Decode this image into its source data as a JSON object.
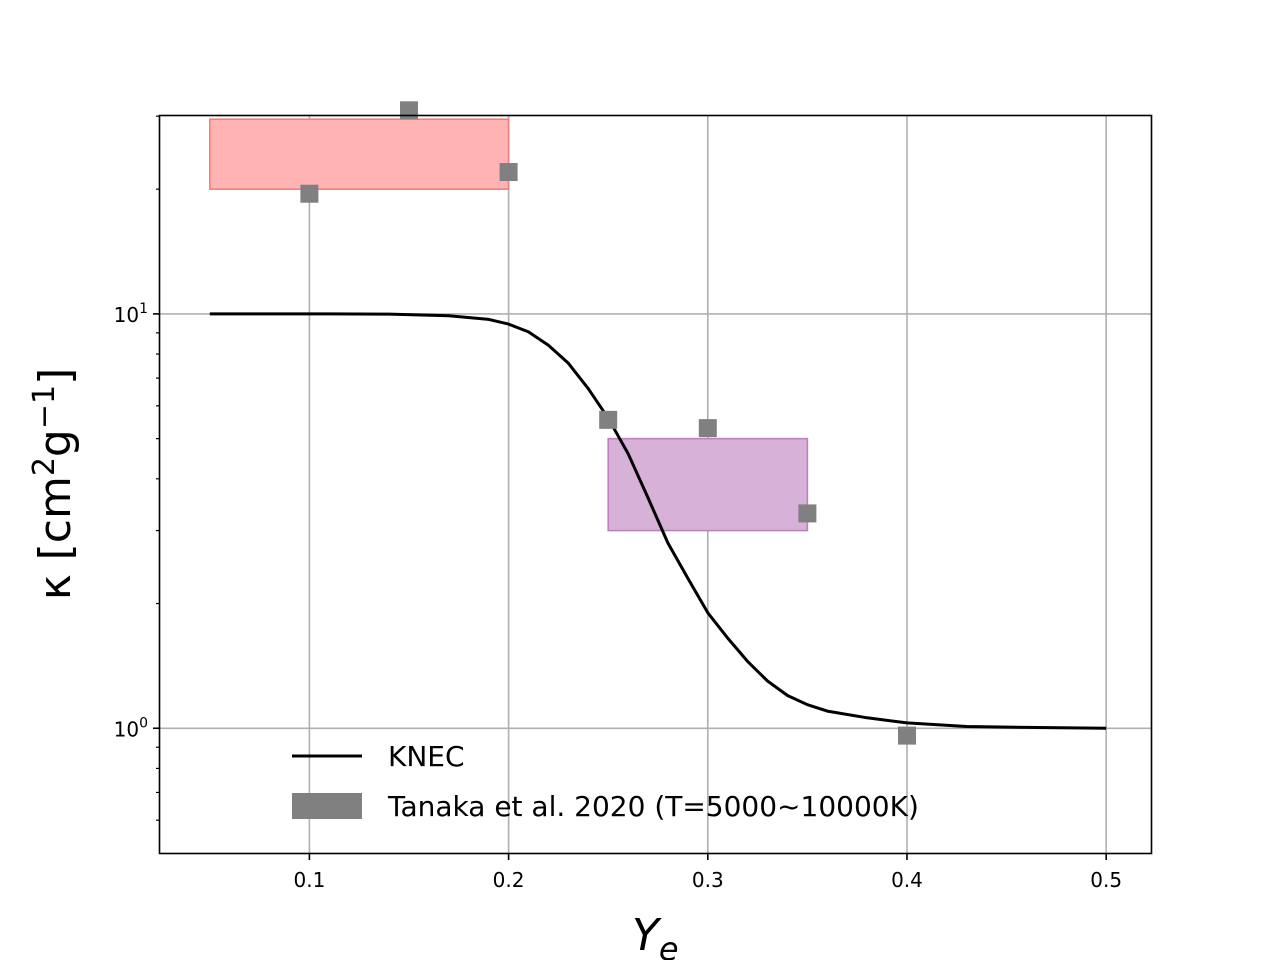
{
  "chart_data": {
    "type": "line",
    "xlabel_main": "Y",
    "xlabel_sub": "e",
    "ylabel_prefix": "κ [cm",
    "ylabel_sup1": "2",
    "ylabel_mid": "g",
    "ylabel_sup2": "−1",
    "ylabel_suffix": "]",
    "xlim": [
      0.025,
      0.5225
    ],
    "ylim": [
      0.5,
      30.2
    ],
    "yscale": "log",
    "grid": true,
    "legend_position": "lower-left",
    "x_ticks": [
      {
        "value": 0.1,
        "label": "0.1"
      },
      {
        "value": 0.2,
        "label": "0.2"
      },
      {
        "value": 0.3,
        "label": "0.3"
      },
      {
        "value": 0.4,
        "label": "0.4"
      },
      {
        "value": 0.5,
        "label": "0.5"
      }
    ],
    "y_major_ticks": [
      {
        "value": 1,
        "base": "10",
        "exp": "0"
      },
      {
        "value": 10,
        "base": "10",
        "exp": "1"
      }
    ],
    "y_minor_ticks": [
      0.6,
      0.7,
      0.8,
      0.9,
      2,
      3,
      4,
      5,
      6,
      7,
      8,
      9,
      20,
      30
    ],
    "series": [
      {
        "name": "KNEC",
        "kind": "line",
        "color": "#000000",
        "x": [
          0.05,
          0.08,
          0.11,
          0.14,
          0.17,
          0.19,
          0.2,
          0.21,
          0.22,
          0.23,
          0.24,
          0.25,
          0.26,
          0.27,
          0.28,
          0.29,
          0.3,
          0.31,
          0.32,
          0.33,
          0.34,
          0.35,
          0.36,
          0.38,
          0.4,
          0.43,
          0.46,
          0.5
        ],
        "y": [
          10.0,
          10.0,
          10.0,
          9.99,
          9.9,
          9.7,
          9.45,
          9.05,
          8.4,
          7.6,
          6.6,
          5.6,
          4.6,
          3.6,
          2.8,
          2.3,
          1.9,
          1.65,
          1.45,
          1.3,
          1.2,
          1.14,
          1.1,
          1.06,
          1.03,
          1.01,
          1.005,
          1.0
        ]
      },
      {
        "name": "Tanaka et al. 2020 (T=5000~10000K)",
        "kind": "scatter",
        "marker": "square",
        "color": "#808080",
        "x": [
          0.1,
          0.15,
          0.2,
          0.25,
          0.3,
          0.35,
          0.4
        ],
        "y": [
          19.5,
          31.0,
          22.0,
          5.55,
          5.3,
          3.3,
          0.96
        ]
      }
    ],
    "bands": [
      {
        "x": [
          0.05,
          0.2
        ],
        "y": [
          20.0,
          29.5
        ],
        "fill": "#ffb3b3",
        "stroke": "#f08080"
      },
      {
        "x": [
          0.25,
          0.35
        ],
        "y": [
          3.0,
          5.0
        ],
        "fill": "#d8b1d8",
        "stroke": "#bf80bf"
      }
    ]
  }
}
